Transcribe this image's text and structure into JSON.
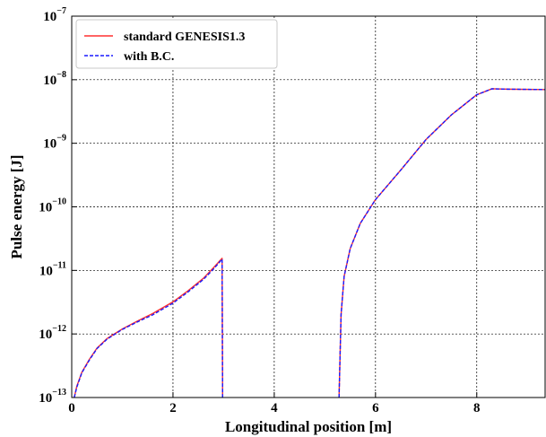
{
  "chart_data": {
    "type": "line",
    "xlabel": "Longitudinal position [m]",
    "ylabel": "Pulse energy [J]",
    "xlim": [
      0,
      9.35
    ],
    "ylim": [
      1e-13,
      1e-07
    ],
    "yscale": "log",
    "grid": true,
    "legend_position": "top-left",
    "x_ticks": [
      {
        "value": 0,
        "label": "0"
      },
      {
        "value": 2,
        "label": "2"
      },
      {
        "value": 4,
        "label": "4"
      },
      {
        "value": 6,
        "label": "6"
      },
      {
        "value": 8,
        "label": "8"
      }
    ],
    "y_ticks": [
      {
        "value": 1e-13,
        "base": "10",
        "exp": "−13"
      },
      {
        "value": 1e-12,
        "base": "10",
        "exp": "−12"
      },
      {
        "value": 1e-11,
        "base": "10",
        "exp": "−11"
      },
      {
        "value": 1e-10,
        "base": "10",
        "exp": "−10"
      },
      {
        "value": 1e-09,
        "base": "10",
        "exp": "−9"
      },
      {
        "value": 1e-08,
        "base": "10",
        "exp": "−8"
      },
      {
        "value": 1e-07,
        "base": "10",
        "exp": "−7"
      }
    ],
    "series": [
      {
        "name": "standard GENESIS1.3",
        "color": "#ff3030",
        "style": "solid",
        "segments": [
          [
            [
              0.05,
              1e-13
            ],
            [
              0.1,
              1.5e-13
            ],
            [
              0.2,
              2.5e-13
            ],
            [
              0.35,
              4e-13
            ],
            [
              0.5,
              6e-13
            ],
            [
              0.7,
              8.5e-13
            ],
            [
              1.0,
              1.2e-12
            ],
            [
              1.3,
              1.6e-12
            ],
            [
              1.6,
              2.1e-12
            ],
            [
              2.0,
              3.2e-12
            ],
            [
              2.3,
              4.8e-12
            ],
            [
              2.6,
              7.5e-12
            ],
            [
              2.8,
              1.1e-11
            ],
            [
              2.97,
              1.55e-11
            ],
            [
              2.98,
              1e-13
            ]
          ],
          [
            [
              5.28,
              1e-13
            ],
            [
              5.32,
              2e-12
            ],
            [
              5.38,
              8e-12
            ],
            [
              5.5,
              2.2e-11
            ],
            [
              5.7,
              5.5e-11
            ],
            [
              6.0,
              1.3e-10
            ],
            [
              6.5,
              3.8e-10
            ],
            [
              7.0,
              1.15e-09
            ],
            [
              7.5,
              2.8e-09
            ],
            [
              8.0,
              5.8e-09
            ],
            [
              8.3,
              7.2e-09
            ],
            [
              8.6,
              7.1e-09
            ],
            [
              9.35,
              7e-09
            ]
          ]
        ]
      },
      {
        "name": "with B.C.",
        "color": "#1a1aff",
        "style": "dashed",
        "segments": [
          [
            [
              0.05,
              1e-13
            ],
            [
              0.1,
              1.45e-13
            ],
            [
              0.2,
              2.45e-13
            ],
            [
              0.35,
              3.9e-13
            ],
            [
              0.5,
              5.9e-13
            ],
            [
              0.7,
              8.3e-13
            ],
            [
              1.0,
              1.18e-12
            ],
            [
              1.3,
              1.55e-12
            ],
            [
              1.6,
              2e-12
            ],
            [
              2.0,
              3.05e-12
            ],
            [
              2.3,
              4.6e-12
            ],
            [
              2.6,
              7.2e-12
            ],
            [
              2.8,
              1.05e-11
            ],
            [
              2.97,
              1.5e-11
            ],
            [
              2.98,
              1e-13
            ]
          ],
          [
            [
              5.28,
              1e-13
            ],
            [
              5.32,
              2e-12
            ],
            [
              5.38,
              8e-12
            ],
            [
              5.5,
              2.2e-11
            ],
            [
              5.7,
              5.5e-11
            ],
            [
              6.0,
              1.3e-10
            ],
            [
              6.5,
              3.8e-10
            ],
            [
              7.0,
              1.15e-09
            ],
            [
              7.5,
              2.8e-09
            ],
            [
              8.0,
              5.8e-09
            ],
            [
              8.3,
              7.2e-09
            ],
            [
              8.6,
              7.1e-09
            ],
            [
              9.35,
              7e-09
            ]
          ]
        ]
      }
    ]
  }
}
